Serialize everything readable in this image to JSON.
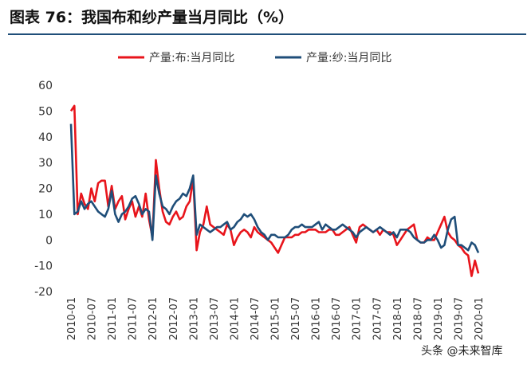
{
  "chart_data": {
    "type": "line",
    "title": "图表 76：我国布和纱产量当月同比（%）",
    "watermark": "头条 @未来智库",
    "categories": [
      "2010-01",
      null,
      null,
      null,
      null,
      null,
      "2010-07",
      null,
      null,
      null,
      null,
      null,
      "2011-01",
      null,
      null,
      null,
      null,
      null,
      "2011-07",
      null,
      null,
      null,
      null,
      null,
      "2012-01",
      null,
      null,
      null,
      null,
      null,
      "2012-07",
      null,
      null,
      null,
      null,
      null,
      "2013-01",
      null,
      null,
      null,
      null,
      null,
      "2013-07",
      null,
      null,
      null,
      null,
      null,
      "2014-01",
      null,
      null,
      null,
      null,
      null,
      "2014-07",
      null,
      null,
      null,
      null,
      null,
      "2015-01",
      null,
      null,
      null,
      null,
      null,
      "2015-07",
      null,
      null,
      null,
      null,
      null,
      "2016-01",
      null,
      null,
      null,
      null,
      null,
      "2016-07",
      null,
      null,
      null,
      null,
      null,
      "2017-01",
      null,
      null,
      null,
      null,
      null,
      "2017-07",
      null,
      null,
      null,
      null,
      null,
      "2018-01",
      null,
      null,
      null,
      null,
      null,
      "2018-07",
      null,
      null,
      null,
      null,
      null,
      "2019-01",
      null,
      null,
      null,
      null,
      null,
      "2019-07",
      null,
      null,
      null,
      null,
      null,
      "2020-01"
    ],
    "series": [
      {
        "name": "产量:布:当月同比",
        "color": "#e8141b",
        "values": [
          50,
          52,
          10,
          18,
          14,
          12,
          20,
          15,
          22,
          23,
          23,
          13,
          21,
          12,
          15,
          17,
          8,
          12,
          15,
          9,
          13,
          9,
          18,
          8,
          1,
          31,
          20,
          11,
          7,
          6,
          9,
          11,
          8,
          9,
          13,
          15,
          24,
          -4,
          3,
          6,
          13,
          6,
          5,
          4,
          3,
          2,
          6,
          4,
          -2,
          1,
          3,
          4,
          3,
          1,
          5,
          3,
          2,
          1,
          0,
          -1,
          -3,
          -5,
          -2,
          1,
          1,
          1,
          2,
          2,
          3,
          3,
          4,
          4,
          4,
          3,
          3,
          3,
          4,
          4,
          2,
          2,
          3,
          4,
          5,
          2,
          -1,
          5,
          6,
          5,
          4,
          3,
          4,
          2,
          4,
          3,
          3,
          2,
          -2,
          0,
          2,
          4,
          5,
          6,
          0,
          -1,
          -1,
          1,
          0,
          0,
          3,
          6,
          9,
          3,
          1,
          0,
          -2,
          -3,
          -5,
          -6,
          -14,
          -8,
          -13
        ]
      },
      {
        "name": "产量:纱:当月同比",
        "color": "#1f4e79",
        "values": [
          45,
          10,
          11,
          15,
          12,
          14,
          15,
          13,
          11,
          10,
          9,
          12,
          19,
          10,
          7,
          10,
          11,
          13,
          16,
          17,
          14,
          10,
          12,
          11,
          0,
          25,
          18,
          13,
          12,
          10,
          13,
          15,
          16,
          18,
          17,
          20,
          25,
          2,
          6,
          5,
          4,
          3,
          4,
          5,
          5,
          6,
          7,
          4,
          5,
          7,
          8,
          10,
          9,
          10,
          8,
          5,
          3,
          2,
          0,
          2,
          2,
          1,
          1,
          1,
          2,
          4,
          5,
          5,
          6,
          5,
          5,
          5,
          6,
          7,
          4,
          6,
          5,
          4,
          4,
          5,
          6,
          5,
          4,
          3,
          1,
          3,
          4,
          5,
          4,
          3,
          4,
          5,
          4,
          3,
          2,
          3,
          1,
          4,
          4,
          4,
          3,
          1,
          0,
          -1,
          -1,
          0,
          0,
          2,
          0,
          -3,
          -2,
          4,
          8,
          9,
          -2,
          -2,
          -3,
          -4,
          -1,
          -2,
          -5
        ]
      }
    ],
    "ylim": [
      -20,
      60
    ],
    "yticks": [
      -20,
      -10,
      0,
      10,
      20,
      30,
      40,
      50,
      60
    ]
  }
}
